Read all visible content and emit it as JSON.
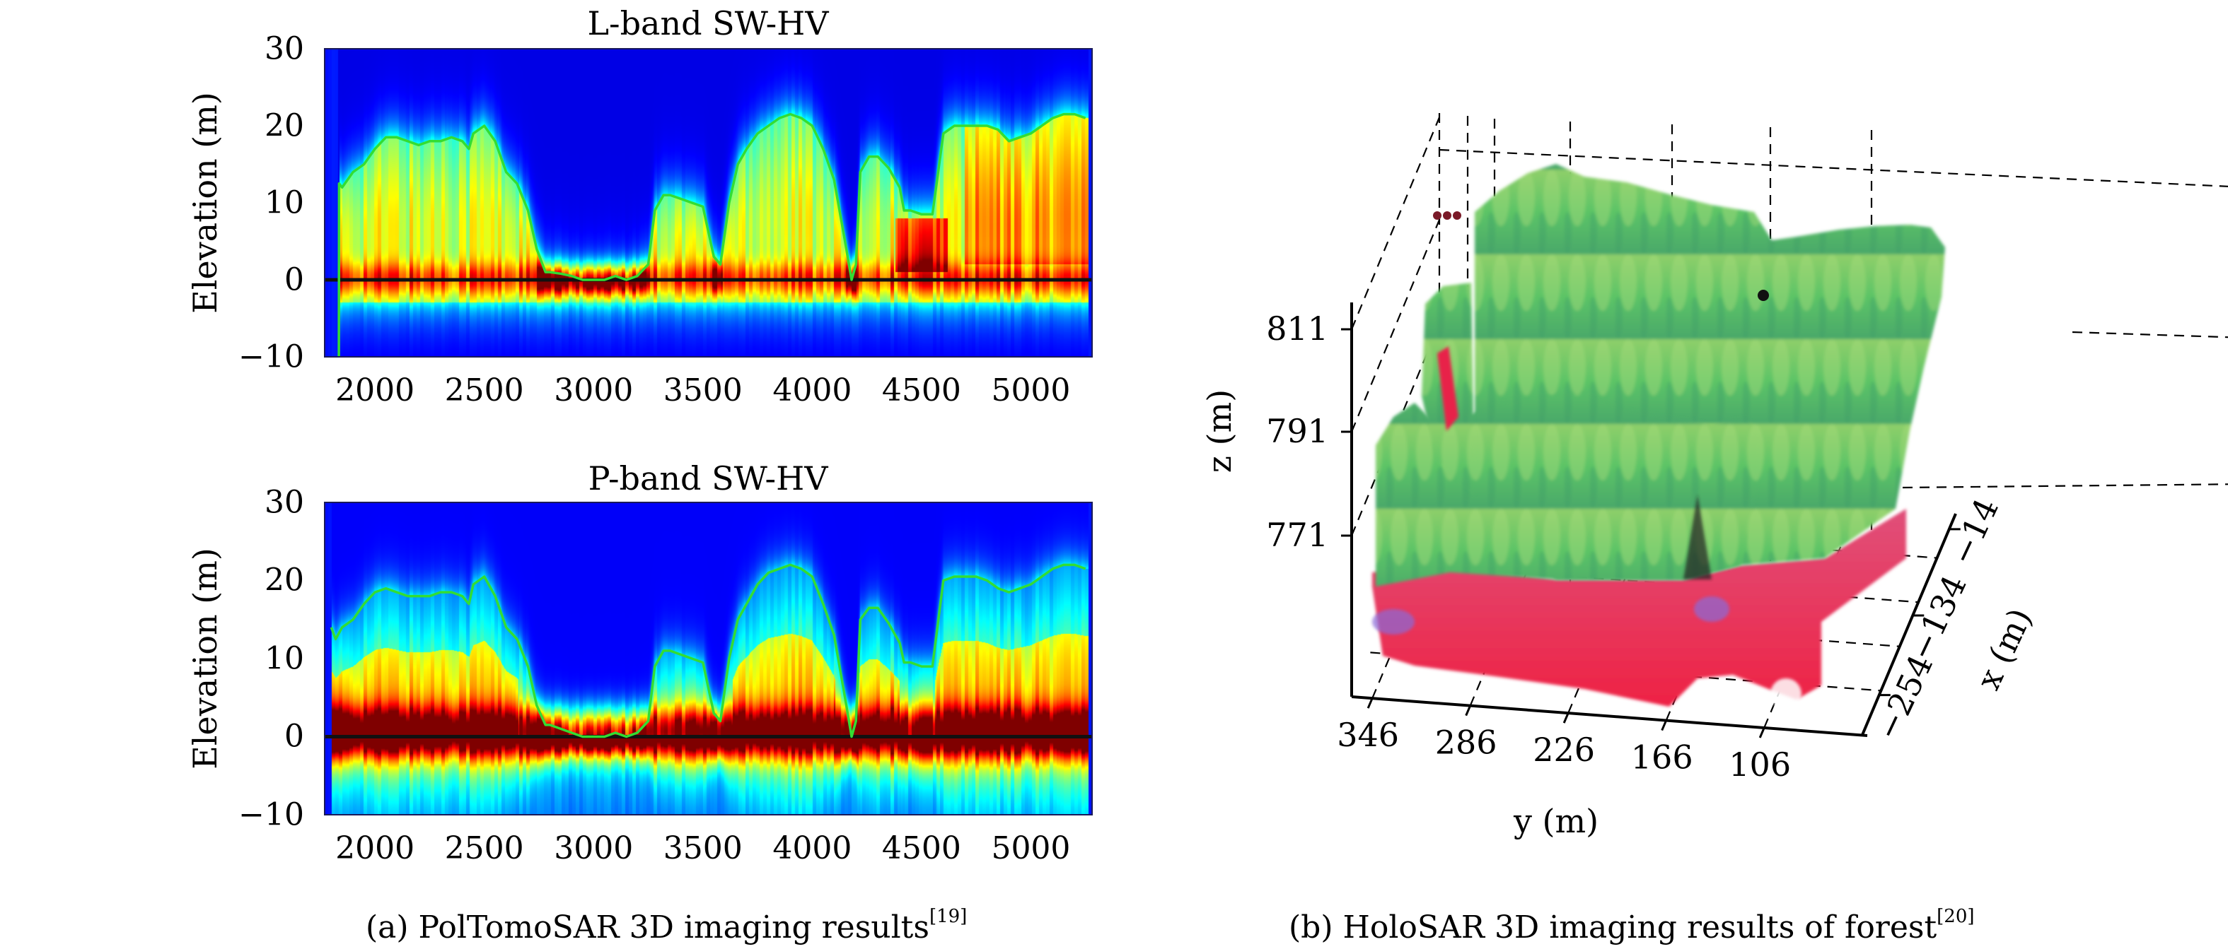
{
  "figure": {
    "caption_a": {
      "text": "(a) PolTomoSAR 3D imaging results",
      "ref": "[19]"
    },
    "caption_b": {
      "text": "(b) HoloSAR 3D imaging results of forest",
      "ref": "[20]"
    }
  },
  "colors": {
    "canopy_line": "#33dd33",
    "ground_line": "#111111",
    "colormap": "jet"
  },
  "chart_data": [
    {
      "type": "heatmap",
      "title": "L-band SW-HV",
      "xlabel": "",
      "ylabel": "Elevation (m)",
      "xlim": [
        1770,
        5280
      ],
      "ylim": [
        -10,
        30
      ],
      "xticks": [
        2000,
        2500,
        3000,
        3500,
        4000,
        4500,
        5000
      ],
      "yticks": [
        30,
        20,
        10,
        0,
        -10
      ],
      "ytick_labels": [
        "30",
        "20",
        "10",
        "0",
        "−10"
      ],
      "ground_elevation": 0,
      "intensity_profile": "L",
      "canopy_height_line": {
        "name": "canopy height",
        "x": [
          1835,
          1836,
          1850,
          1900,
          1950,
          2000,
          2050,
          2100,
          2150,
          2200,
          2250,
          2300,
          2350,
          2400,
          2430,
          2450,
          2500,
          2550,
          2600,
          2650,
          2700,
          2740,
          2780,
          2800,
          2850,
          2900,
          2950,
          3000,
          3050,
          3100,
          3150,
          3200,
          3250,
          3280,
          3320,
          3350,
          3400,
          3450,
          3500,
          3550,
          3580,
          3620,
          3660,
          3700,
          3750,
          3800,
          3850,
          3900,
          3950,
          4000,
          4050,
          4100,
          4150,
          4180,
          4200,
          4220,
          4260,
          4300,
          4350,
          4400,
          4420,
          4450,
          4500,
          4550,
          4600,
          4650,
          4700,
          4750,
          4800,
          4850,
          4900,
          4950,
          5000,
          5050,
          5100,
          5150,
          5200,
          5250
        ],
        "y": [
          -10,
          12.5,
          12,
          14,
          15,
          17,
          18.5,
          18.5,
          18,
          17.5,
          18,
          18,
          18.5,
          18,
          17,
          19,
          20,
          18,
          14,
          12.5,
          9,
          4,
          1,
          1,
          0.8,
          0.5,
          0,
          0,
          0,
          0.5,
          0,
          0.5,
          2,
          9,
          11,
          11,
          10.5,
          10,
          9.5,
          3,
          2,
          10,
          15,
          17,
          19,
          20,
          21,
          21.5,
          21,
          20,
          17,
          13,
          5,
          0,
          2,
          14,
          16,
          16,
          14.5,
          12,
          9,
          9,
          8.5,
          8.5,
          19,
          20,
          20,
          20,
          20,
          19.5,
          18,
          18.5,
          19,
          20,
          21,
          21.5,
          21.5,
          21
        ]
      }
    },
    {
      "type": "heatmap",
      "title": "P-band SW-HV",
      "xlabel": "",
      "ylabel": "Elevation (m)",
      "xlim": [
        1770,
        5280
      ],
      "ylim": [
        -10,
        30
      ],
      "xticks": [
        2000,
        2500,
        3000,
        3500,
        4000,
        4500,
        5000
      ],
      "yticks": [
        30,
        20,
        10,
        0,
        -10
      ],
      "ytick_labels": [
        "30",
        "20",
        "10",
        "0",
        "−10"
      ],
      "ground_elevation": 0,
      "intensity_profile": "P",
      "canopy_height_line": {
        "name": "canopy height",
        "x": [
          1800,
          1820,
          1850,
          1900,
          1950,
          2000,
          2050,
          2100,
          2150,
          2200,
          2250,
          2300,
          2350,
          2400,
          2430,
          2450,
          2500,
          2550,
          2600,
          2650,
          2700,
          2740,
          2780,
          2800,
          2850,
          2900,
          2950,
          3000,
          3050,
          3100,
          3150,
          3200,
          3250,
          3280,
          3320,
          3350,
          3400,
          3450,
          3500,
          3550,
          3580,
          3620,
          3660,
          3700,
          3750,
          3800,
          3850,
          3900,
          3950,
          4000,
          4050,
          4100,
          4150,
          4180,
          4200,
          4220,
          4260,
          4300,
          4350,
          4400,
          4420,
          4450,
          4500,
          4550,
          4600,
          4650,
          4700,
          4750,
          4800,
          4850,
          4900,
          4950,
          5000,
          5050,
          5100,
          5150,
          5200,
          5250
        ],
        "y": [
          14,
          12.5,
          14,
          15,
          17,
          18.5,
          19,
          18.5,
          18,
          18,
          18,
          18.5,
          18.5,
          18,
          17,
          19.5,
          20.5,
          18,
          14,
          12.5,
          9,
          4,
          1.5,
          1.5,
          1,
          0.5,
          0,
          0,
          0,
          0.5,
          0,
          0.5,
          2,
          9,
          11,
          11,
          10.5,
          10,
          9.5,
          3,
          2,
          10,
          15,
          17,
          19.5,
          21,
          21.5,
          22,
          21.5,
          20.5,
          17,
          13,
          5,
          0,
          2,
          15,
          16.5,
          16.5,
          14.5,
          12,
          9.5,
          9.5,
          9,
          9,
          20,
          20.5,
          20.5,
          20.5,
          20,
          19,
          18.5,
          19,
          19.5,
          20.5,
          21.5,
          22,
          22,
          21.5
        ]
      }
    },
    {
      "type": "scatter3d",
      "title": "",
      "xlabel": "x (m)",
      "ylabel": "y (m)",
      "zlabel": "z (m)",
      "xticks": [
        -254,
        -134,
        -14
      ],
      "xtick_labels": [
        "−254",
        "−134",
        "−14"
      ],
      "yticks": [
        346,
        286,
        226,
        166,
        106
      ],
      "yticks_labels": [
        "346",
        "286",
        "226",
        "166",
        "106"
      ],
      "zticks": [
        771,
        791,
        811
      ],
      "zlim": [
        765,
        830
      ],
      "grid": true,
      "description": "Forest point cloud: red/pink ground layer near z≈775-782, green canopy up to z≈825"
    }
  ]
}
